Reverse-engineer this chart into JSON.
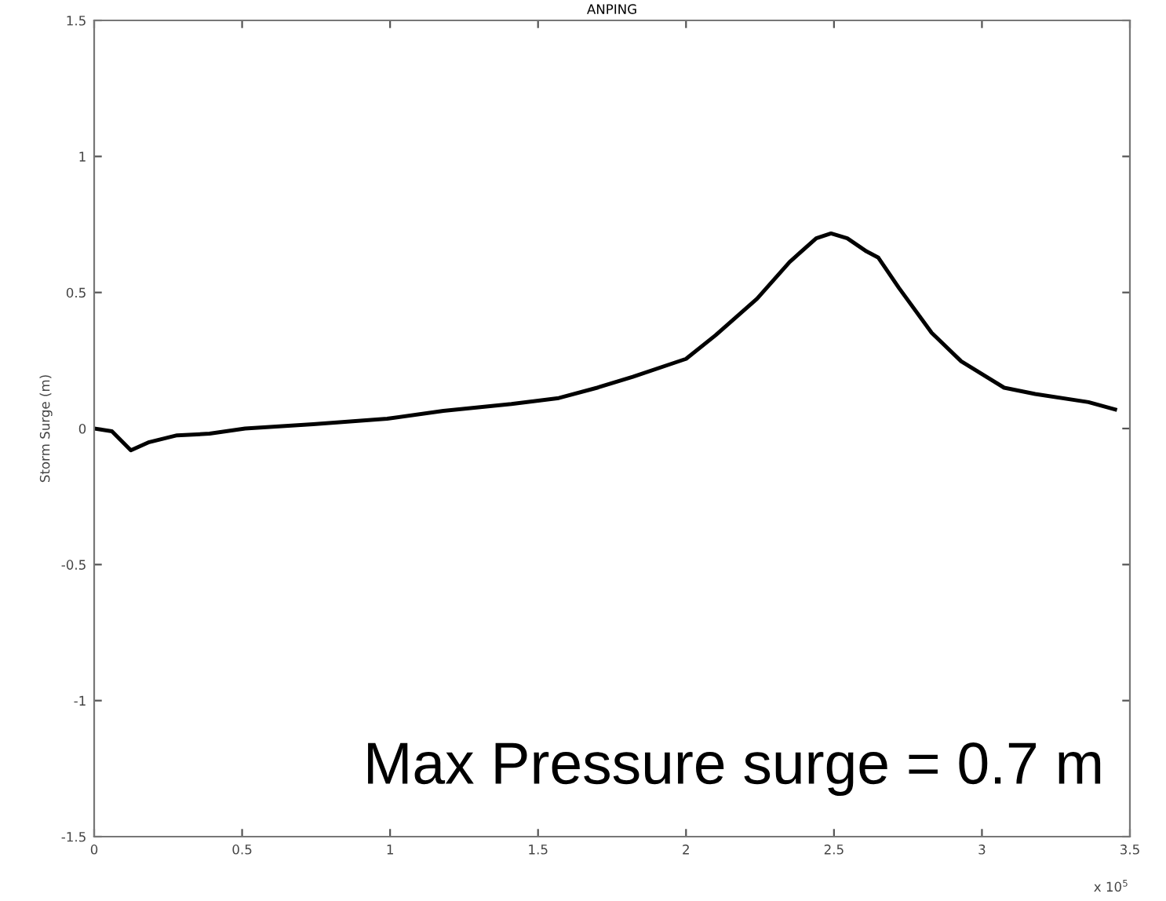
{
  "chart_data": {
    "type": "line",
    "title": "ANPING",
    "ylabel": "Storm Surge (m)",
    "x": [
      0,
      0.06,
      0.124,
      0.186,
      0.28,
      0.39,
      0.51,
      0.74,
      0.99,
      1.18,
      1.41,
      1.57,
      1.7,
      1.82,
      2.0,
      2.1,
      2.24,
      2.35,
      2.44,
      2.49,
      2.545,
      2.61,
      2.65,
      2.72,
      2.83,
      2.93,
      3.075,
      3.18,
      3.36,
      3.45
    ],
    "series": [
      {
        "color": "#000000",
        "values": [
          0,
          -0.01,
          -0.08,
          -0.05,
          -0.025,
          -0.019,
          0,
          0.016,
          0.036,
          0.065,
          0.09,
          0.112,
          0.15,
          0.19,
          0.256,
          0.343,
          0.477,
          0.612,
          0.699,
          0.717,
          0.699,
          0.651,
          0.628,
          0.516,
          0.352,
          0.247,
          0.15,
          0.127,
          0.097,
          0.07
        ]
      }
    ],
    "xlim": [
      0,
      3.5
    ],
    "ylim": [
      -1.5,
      1.5
    ],
    "xticks": [
      0,
      0.5,
      1,
      1.5,
      2,
      2.5,
      3,
      3.5
    ],
    "yticks": [
      -1.5,
      -1,
      -0.5,
      0,
      0.5,
      1,
      1.5
    ],
    "annotations": [
      "x 10$^{5}$",
      "Max Pressure surge = 0.7 m"
    ],
    "grid": false,
    "legend": false,
    "marker": "none",
    "line_style": "solid"
  }
}
